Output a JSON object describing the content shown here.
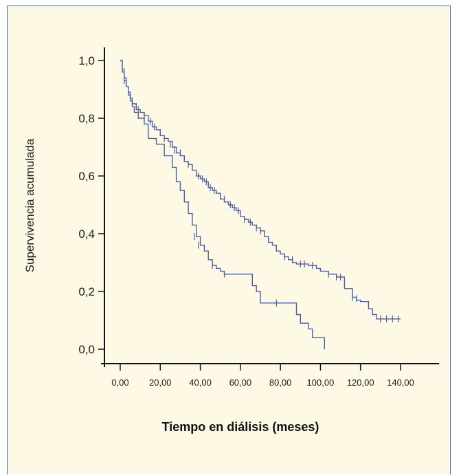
{
  "colors": {
    "panel_background": "#fdf9e4",
    "panel_border": "#4a6aa8",
    "series_line": "#4a5fa8",
    "axis": "#111111"
  },
  "chart_data": {
    "type": "line",
    "subtype": "kaplan-meier survival (step)",
    "ylabel": "Supervivencia acumulada",
    "xlabel": "Tiempo en diálisis (meses)",
    "xlim": [
      -6,
      152
    ],
    "ylim": [
      -0.08,
      1.05
    ],
    "x_ticks": [
      0,
      20,
      40,
      60,
      80,
      100,
      120,
      140
    ],
    "x_tick_labels": [
      "0,00",
      "20,00",
      "40,00",
      "60,00",
      "80,00",
      "100,00",
      "120,00",
      "140,00"
    ],
    "y_ticks": [
      0.0,
      0.2,
      0.4,
      0.6,
      0.8,
      1.0
    ],
    "y_tick_labels": [
      "0,0",
      "0,2",
      "0,4",
      "0,6",
      "0,8",
      "1,0"
    ],
    "legend": "none",
    "grid": false,
    "series": [
      {
        "points": [
          [
            0,
            1.0
          ],
          [
            1,
            0.96
          ],
          [
            2,
            0.93
          ],
          [
            3,
            0.91
          ],
          [
            4,
            0.89
          ],
          [
            5,
            0.87
          ],
          [
            6,
            0.85
          ],
          [
            8,
            0.83
          ],
          [
            10,
            0.82
          ],
          [
            12,
            0.81
          ],
          [
            14,
            0.79
          ],
          [
            16,
            0.77
          ],
          [
            18,
            0.76
          ],
          [
            20,
            0.74
          ],
          [
            22,
            0.73
          ],
          [
            24,
            0.72
          ],
          [
            26,
            0.7
          ],
          [
            28,
            0.68
          ],
          [
            30,
            0.67
          ],
          [
            32,
            0.65
          ],
          [
            34,
            0.64
          ],
          [
            36,
            0.62
          ],
          [
            38,
            0.6
          ],
          [
            40,
            0.59
          ],
          [
            42,
            0.58
          ],
          [
            44,
            0.56
          ],
          [
            46,
            0.55
          ],
          [
            48,
            0.54
          ],
          [
            50,
            0.52
          ],
          [
            52,
            0.51
          ],
          [
            54,
            0.5
          ],
          [
            56,
            0.49
          ],
          [
            58,
            0.48
          ],
          [
            60,
            0.46
          ],
          [
            62,
            0.45
          ],
          [
            64,
            0.44
          ],
          [
            66,
            0.43
          ],
          [
            68,
            0.42
          ],
          [
            70,
            0.41
          ],
          [
            72,
            0.39
          ],
          [
            74,
            0.37
          ],
          [
            76,
            0.36
          ],
          [
            78,
            0.34
          ],
          [
            80,
            0.33
          ],
          [
            82,
            0.32
          ],
          [
            84,
            0.31
          ],
          [
            86,
            0.3
          ],
          [
            88,
            0.295
          ],
          [
            94,
            0.29
          ],
          [
            98,
            0.28
          ],
          [
            100,
            0.27
          ],
          [
            104,
            0.26
          ],
          [
            108,
            0.25
          ],
          [
            112,
            0.21
          ],
          [
            116,
            0.18
          ],
          [
            118,
            0.17
          ],
          [
            120,
            0.165
          ],
          [
            124,
            0.14
          ],
          [
            126,
            0.12
          ],
          [
            128,
            0.105
          ],
          [
            140,
            0.105
          ]
        ],
        "censor_marks": [
          [
            2,
            0.93
          ],
          [
            3,
            0.92
          ],
          [
            5,
            0.88
          ],
          [
            8,
            0.84
          ],
          [
            9,
            0.83
          ],
          [
            12,
            0.81
          ],
          [
            15,
            0.79
          ],
          [
            17,
            0.77
          ],
          [
            20,
            0.75
          ],
          [
            22,
            0.73
          ],
          [
            25,
            0.71
          ],
          [
            27,
            0.69
          ],
          [
            30,
            0.68
          ],
          [
            32,
            0.66
          ],
          [
            34,
            0.64
          ],
          [
            36,
            0.63
          ],
          [
            39,
            0.6
          ],
          [
            41,
            0.59
          ],
          [
            43,
            0.58
          ],
          [
            45,
            0.56
          ],
          [
            47,
            0.55
          ],
          [
            50,
            0.53
          ],
          [
            52,
            0.52
          ],
          [
            55,
            0.5
          ],
          [
            57,
            0.49
          ],
          [
            59,
            0.48
          ],
          [
            62,
            0.45
          ],
          [
            65,
            0.44
          ],
          [
            68,
            0.42
          ],
          [
            70,
            0.41
          ],
          [
            74,
            0.38
          ],
          [
            78,
            0.35
          ],
          [
            82,
            0.32
          ],
          [
            86,
            0.31
          ],
          [
            90,
            0.295
          ],
          [
            92,
            0.295
          ],
          [
            96,
            0.29
          ],
          [
            104,
            0.26
          ],
          [
            108,
            0.25
          ],
          [
            110,
            0.25
          ],
          [
            116,
            0.18
          ],
          [
            118,
            0.175
          ],
          [
            130,
            0.105
          ],
          [
            133,
            0.105
          ],
          [
            136,
            0.105
          ],
          [
            139,
            0.105
          ]
        ]
      },
      {
        "points": [
          [
            0,
            1.0
          ],
          [
            1,
            0.97
          ],
          [
            2,
            0.94
          ],
          [
            3,
            0.91
          ],
          [
            4,
            0.88
          ],
          [
            5,
            0.86
          ],
          [
            6,
            0.84
          ],
          [
            7,
            0.82
          ],
          [
            9,
            0.8
          ],
          [
            12,
            0.78
          ],
          [
            14,
            0.73
          ],
          [
            18,
            0.71
          ],
          [
            22,
            0.67
          ],
          [
            26,
            0.63
          ],
          [
            28,
            0.58
          ],
          [
            30,
            0.55
          ],
          [
            32,
            0.51
          ],
          [
            34,
            0.47
          ],
          [
            36,
            0.43
          ],
          [
            38,
            0.39
          ],
          [
            40,
            0.36
          ],
          [
            42,
            0.34
          ],
          [
            44,
            0.31
          ],
          [
            46,
            0.29
          ],
          [
            48,
            0.28
          ],
          [
            50,
            0.27
          ],
          [
            52,
            0.26
          ],
          [
            64,
            0.26
          ],
          [
            66,
            0.22
          ],
          [
            68,
            0.2
          ],
          [
            70,
            0.16
          ],
          [
            86,
            0.16
          ],
          [
            88,
            0.12
          ],
          [
            90,
            0.09
          ],
          [
            94,
            0.07
          ],
          [
            96,
            0.04
          ],
          [
            102,
            0.04
          ],
          [
            102,
            0.0
          ]
        ],
        "censor_marks": [
          [
            37,
            0.39
          ],
          [
            39,
            0.36
          ],
          [
            46,
            0.29
          ],
          [
            52,
            0.26
          ],
          [
            78,
            0.16
          ]
        ]
      }
    ]
  }
}
